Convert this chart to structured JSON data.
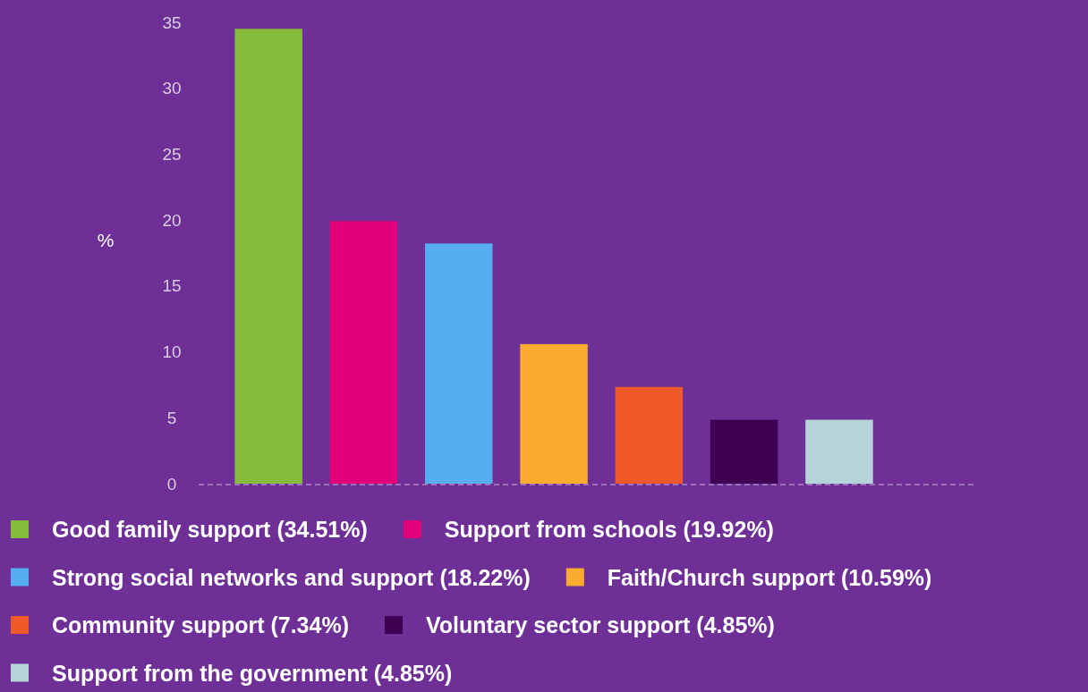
{
  "chart_data": {
    "type": "bar",
    "ylabel": "%",
    "categories": [
      null
    ],
    "series": [
      {
        "name": "Good family support (34.51%)",
        "color": "#86bc3c",
        "values": [
          34.51
        ]
      },
      {
        "name": "Support from schools (19.92%)",
        "color": "#e2007a",
        "values": [
          19.92
        ]
      },
      {
        "name": "Strong social networks and support (18.22%)",
        "color": "#56aeee",
        "values": [
          18.22
        ]
      },
      {
        "name": "Faith/Church support (10.59%)",
        "color": "#fbab30",
        "values": [
          10.59
        ]
      },
      {
        "name": "Community support (7.34%)",
        "color": "#f0592a",
        "values": [
          7.34
        ]
      },
      {
        "name": "Voluntary sector support (4.85%)",
        "color": "#3d0053",
        "values": [
          4.85
        ]
      },
      {
        "name": "Support from the government (4.85%)",
        "color": "#b5d3d8",
        "values": [
          4.85
        ]
      }
    ],
    "ylim": [
      0,
      35
    ],
    "yticks": [
      0,
      5,
      10,
      15,
      20,
      25,
      30,
      35
    ],
    "grid": false,
    "legend": "bottom"
  }
}
